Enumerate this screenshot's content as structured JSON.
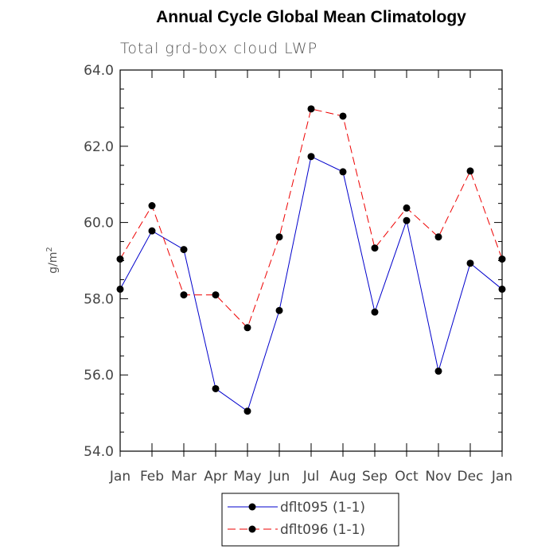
{
  "chart_data": {
    "type": "line",
    "title": "Annual Cycle Global Mean Climatology",
    "subtitle": "Total grd-box cloud LWP",
    "ylabel": "g/m",
    "ylabel_sup": "2",
    "categories": [
      "Jan",
      "Feb",
      "Mar",
      "Apr",
      "May",
      "Jun",
      "Jul",
      "Aug",
      "Sep",
      "Oct",
      "Nov",
      "Dec",
      "Jan"
    ],
    "ylim": [
      54.0,
      64.0
    ],
    "yticks": [
      "54.0",
      "56.0",
      "58.0",
      "60.0",
      "62.0",
      "64.0"
    ],
    "series": [
      {
        "name": "dflt095 (1-1)",
        "color": "#0000cc",
        "dash": "solid",
        "values": [
          58.25,
          59.78,
          59.29,
          55.64,
          55.05,
          57.69,
          61.73,
          61.33,
          57.65,
          60.05,
          56.1,
          58.93,
          58.25
        ]
      },
      {
        "name": "dflt096 (1-1)",
        "color": "#ee0000",
        "dash": "dashed",
        "values": [
          59.04,
          60.44,
          58.1,
          58.1,
          57.24,
          59.62,
          62.98,
          62.79,
          59.33,
          60.38,
          59.62,
          61.35,
          59.04
        ]
      }
    ],
    "legend_position": "bottom-center",
    "grid": false
  }
}
